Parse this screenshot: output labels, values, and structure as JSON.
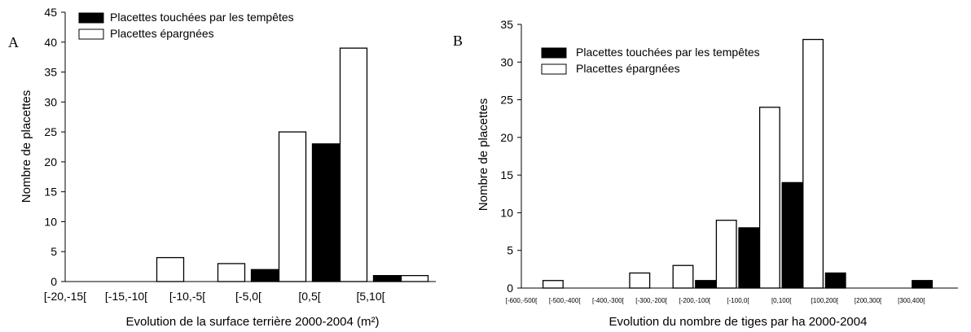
{
  "chart_data": [
    {
      "type": "bar",
      "panel_label": "A",
      "xlabel": "Evolution de la surface terrière 2000-2004 (m²)",
      "ylabel": "Nombre de placettes",
      "ylim": [
        0,
        45
      ],
      "yticks": [
        0,
        5,
        10,
        15,
        20,
        25,
        30,
        35,
        40,
        45
      ],
      "categories": [
        "[-20,-15[",
        "[-15,-10[",
        "[-10,-5[",
        "[-5,0[",
        "[0,5[",
        "[5,10["
      ],
      "legend_position": "top-left",
      "series": [
        {
          "name": "Placettes touchées par les tempêtes",
          "color": "#000000",
          "values": [
            0,
            0,
            0,
            2,
            23,
            1
          ]
        },
        {
          "name": "Placettes épargnées",
          "color": "#ffffff",
          "values": [
            0,
            4,
            3,
            25,
            39,
            1
          ]
        }
      ]
    },
    {
      "type": "bar",
      "panel_label": "B",
      "xlabel": "Evolution du nombre de tiges par ha 2000-2004",
      "ylabel": "Nombre de placettes",
      "ylim": [
        0,
        35
      ],
      "yticks": [
        0,
        5,
        10,
        15,
        20,
        25,
        30,
        35
      ],
      "categories": [
        "[-600,-500[",
        "[-500,-400[",
        "[-400,-300[",
        "[-300,-200[",
        "[-200,-100[",
        "[-100,0[",
        "[0,100[",
        "[100,200[",
        "[200,300[",
        "[300,400["
      ],
      "legend_position": "top-left",
      "series": [
        {
          "name": "Placettes touchées par les tempêtes",
          "color": "#000000",
          "values": [
            0,
            0,
            0,
            0,
            1,
            8,
            14,
            2,
            0,
            1
          ]
        },
        {
          "name": "Placettes épargnées",
          "color": "#ffffff",
          "values": [
            1,
            0,
            2,
            3,
            9,
            24,
            33,
            0,
            0,
            0
          ]
        }
      ]
    }
  ]
}
